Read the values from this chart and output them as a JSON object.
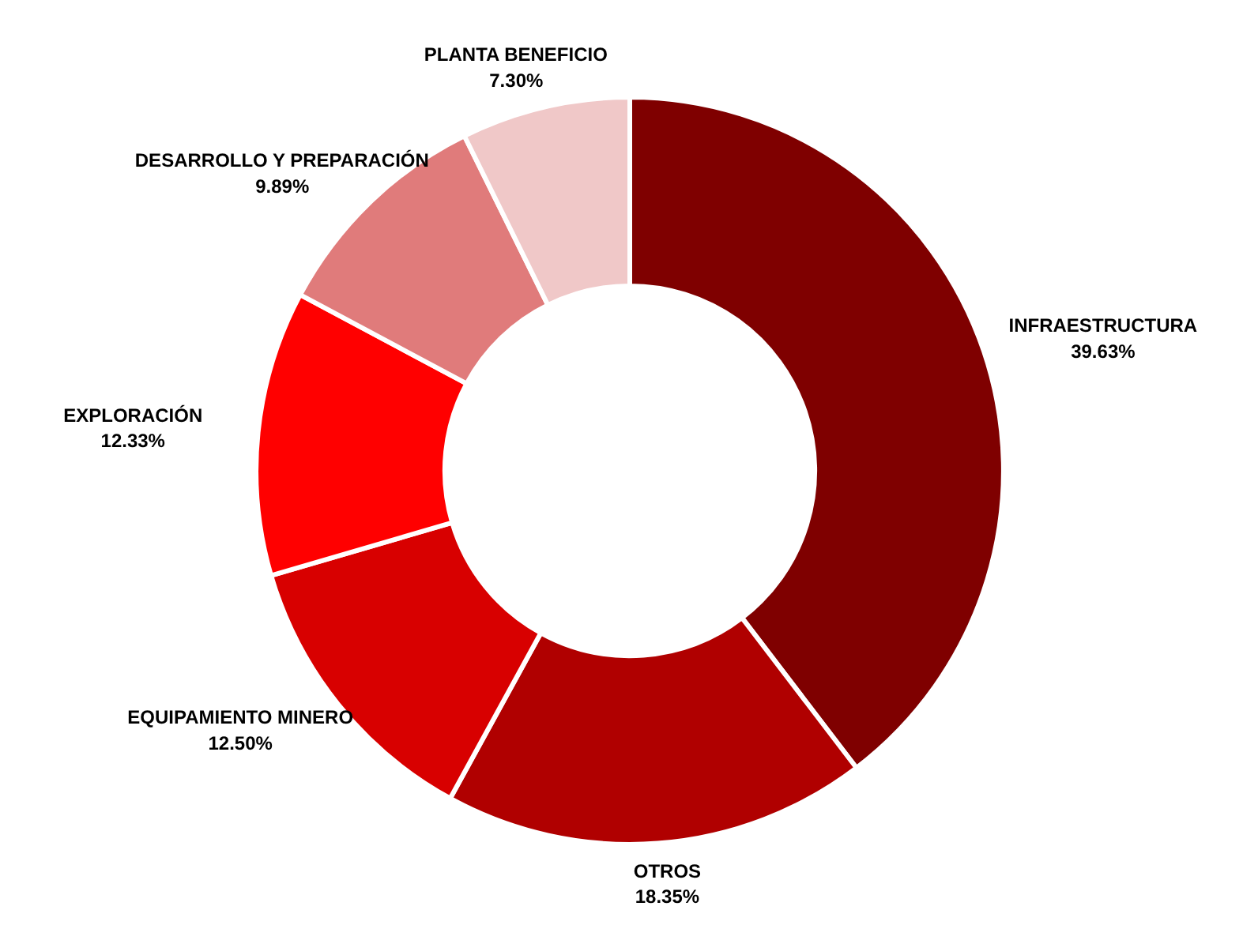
{
  "chart_data": {
    "type": "donut",
    "categories": [
      "INFRAESTRUCTURA",
      "OTROS",
      "EQUIPAMIENTO MINERO",
      "EXPLORACIÓN",
      "DESARROLLO Y PREPARACIÓN",
      "PLANTA BENEFICIO"
    ],
    "values": [
      39.63,
      18.35,
      12.5,
      12.33,
      9.89,
      7.3
    ],
    "colors": [
      "#7f0000",
      "#b00000",
      "#d80000",
      "#ff0000",
      "#e07b7b",
      "#f0c8c8"
    ],
    "value_labels": [
      "39.63%",
      "18.35%",
      "12.50%",
      "12.33%",
      "9.89%",
      "7.30%"
    ]
  }
}
